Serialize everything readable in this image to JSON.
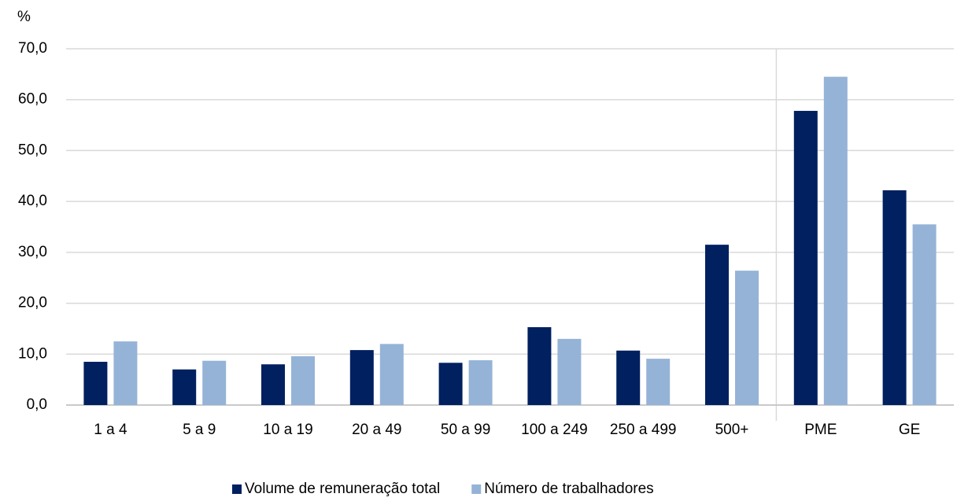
{
  "chart_data": {
    "type": "bar",
    "y_label": "%",
    "categories": [
      "1 a 4",
      "5 a 9",
      "10 a 19",
      "20 a 49",
      "50 a 99",
      "100 a 249",
      "250 a 499",
      "500+",
      "PME",
      "GE"
    ],
    "series": [
      {
        "name": "Volume de remuneração total",
        "color": "#002060",
        "values": [
          8.5,
          7.0,
          8.0,
          10.8,
          8.3,
          15.3,
          10.7,
          31.5,
          57.8,
          42.2
        ]
      },
      {
        "name": "Número de trabalhadores",
        "color": "#95b3d7",
        "values": [
          12.5,
          8.7,
          9.6,
          12.0,
          8.8,
          13.0,
          9.1,
          26.4,
          64.5,
          35.5
        ]
      }
    ],
    "ylim": [
      0,
      70
    ],
    "yticks": [
      {
        "value": 0,
        "label": "0,0"
      },
      {
        "value": 10,
        "label": "10,0"
      },
      {
        "value": 20,
        "label": "20,0"
      },
      {
        "value": 30,
        "label": "30,0"
      },
      {
        "value": 40,
        "label": "40,0"
      },
      {
        "value": 50,
        "label": "50,0"
      },
      {
        "value": 60,
        "label": "60,0"
      },
      {
        "value": 70,
        "label": "70,0"
      }
    ],
    "grid": true,
    "legend": "bottom"
  }
}
